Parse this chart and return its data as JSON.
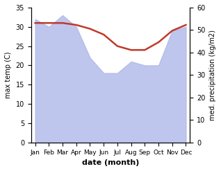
{
  "months": [
    "Jan",
    "Feb",
    "Mar",
    "Apr",
    "May",
    "Jun",
    "Jul",
    "Aug",
    "Sep",
    "Oct",
    "Nov",
    "Dec"
  ],
  "x": [
    0,
    1,
    2,
    3,
    4,
    5,
    6,
    7,
    8,
    9,
    10,
    11
  ],
  "precipitation": [
    32,
    30,
    33,
    30,
    22,
    18,
    18,
    21,
    20,
    20,
    29,
    30
  ],
  "temperature": [
    31,
    31,
    31,
    30.5,
    29.5,
    28,
    25,
    24,
    24,
    26,
    29,
    30.5
  ],
  "temp_color": "#c0392b",
  "precip_color": "#aab4e8",
  "precip_alpha": 0.75,
  "temp_ylim": [
    0,
    35
  ],
  "precip_ylim": [
    0,
    60
  ],
  "temp_yticks": [
    0,
    5,
    10,
    15,
    20,
    25,
    30,
    35
  ],
  "precip_yticks": [
    0,
    10,
    20,
    30,
    40,
    50,
    60
  ],
  "xlabel": "date (month)",
  "ylabel_left": "max temp (C)",
  "ylabel_right": "med. precipitation (kg/m2)",
  "title": "",
  "background_color": "#ffffff"
}
